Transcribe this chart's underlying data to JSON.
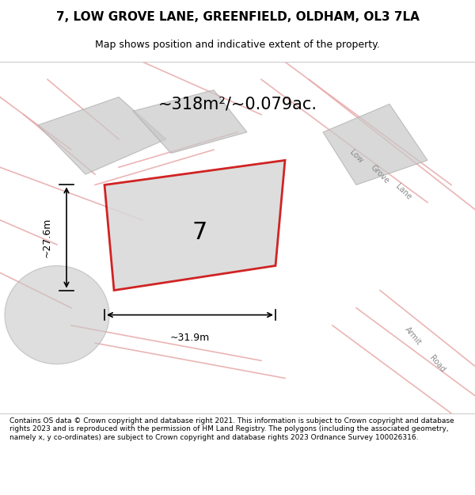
{
  "title_line1": "7, LOW GROVE LANE, GREENFIELD, OLDHAM, OL3 7LA",
  "title_line2": "Map shows position and indicative extent of the property.",
  "area_text": "~318m²/~0.079ac.",
  "plot_number": "7",
  "dim_width": "~31.9m",
  "dim_height": "~27.6m",
  "footer_text": "Contains OS data © Crown copyright and database right 2021. This information is subject to Crown copyright and database rights 2023 and is reproduced with the permission of HM Land Registry. The polygons (including the associated geometry, namely x, y co-ordinates) are subject to Crown copyright and database rights 2023 Ordnance Survey 100026316.",
  "bg_color": "#f5f5f5",
  "map_bg": "#f0eeec",
  "road_color_light": "#e8a8a8",
  "plot_fill": "#d8d8d8",
  "plot_outline": "#cc0000",
  "neighbor_fill": "#c8c8c8",
  "road_label_color": "#888888",
  "title_bg": "#ffffff",
  "footer_bg": "#ffffff"
}
